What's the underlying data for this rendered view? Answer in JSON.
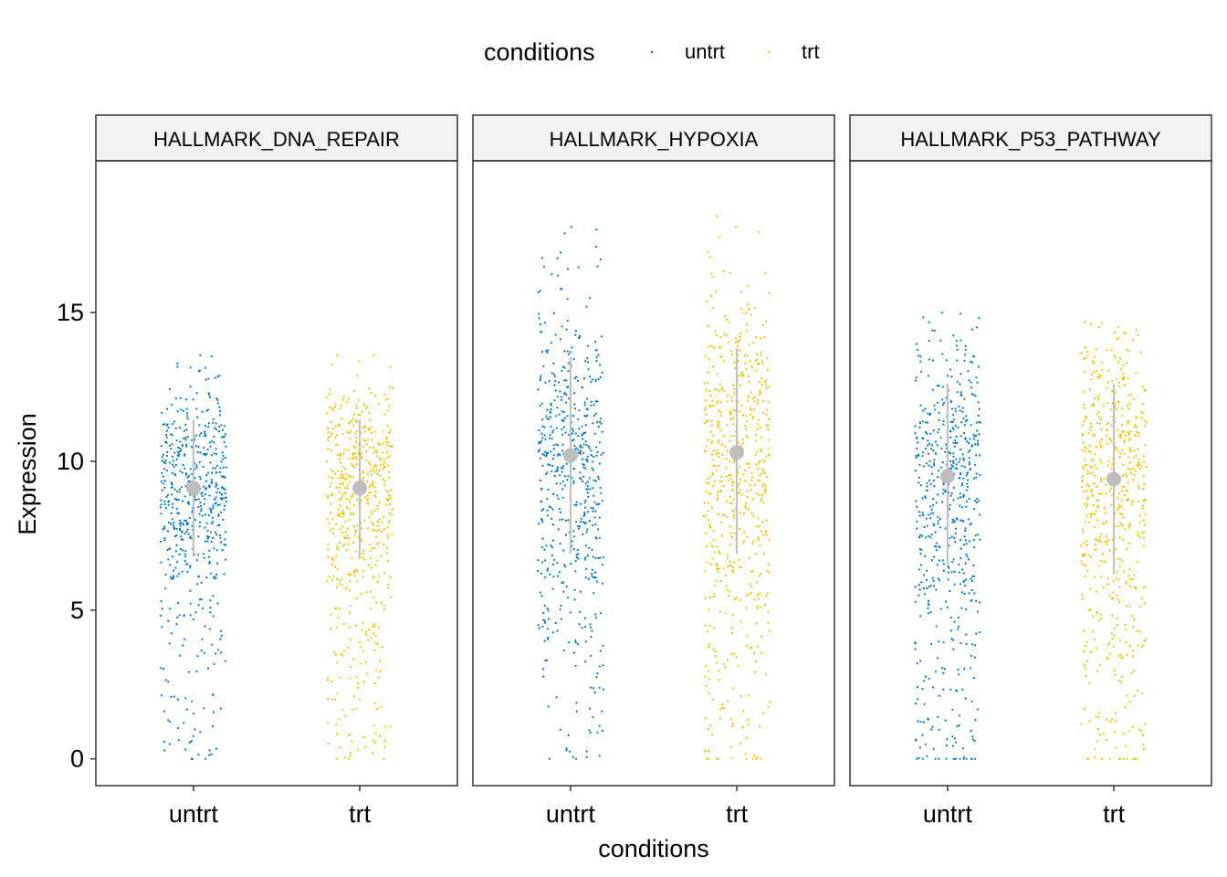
{
  "chart_data": {
    "type": "scatter",
    "subtype": "faceted jitter strip plot with mean ± sd pointrange",
    "xlabel": "conditions",
    "ylabel": "Expression",
    "ylim": [
      -0.9,
      20.1
    ],
    "yticks": [
      0,
      5,
      10,
      15
    ],
    "grid": false,
    "legend": {
      "position": "top",
      "title": "conditions",
      "entries": [
        {
          "label": "untrt",
          "color": "#0073C2"
        },
        {
          "label": "trt",
          "color": "#EFC000"
        }
      ]
    },
    "categories": [
      "untrt",
      "trt"
    ],
    "summary_color": "#BEBEBE",
    "facets": [
      {
        "title": "HALLMARK_DNA_REPAIR",
        "series": [
          {
            "name": "untrt",
            "mean": 9.1,
            "ymin": 6.8,
            "ymax": 11.4,
            "max": 13.6,
            "zeros": 3
          },
          {
            "name": "trt",
            "mean": 9.1,
            "ymin": 6.8,
            "ymax": 11.4,
            "max": 13.6,
            "zeros": 2
          }
        ]
      },
      {
        "title": "HALLMARK_HYPOXIA",
        "series": [
          {
            "name": "untrt",
            "mean": 10.2,
            "ymin": 6.9,
            "ymax": 13.5,
            "max": 18.7,
            "zeros": 2
          },
          {
            "name": "trt",
            "mean": 10.3,
            "ymin": 6.9,
            "ymax": 13.8,
            "max": 18.6,
            "zeros": 8
          }
        ]
      },
      {
        "title": "HALLMARK_P53_PATHWAY",
        "series": [
          {
            "name": "untrt",
            "mean": 9.5,
            "ymin": 6.5,
            "ymax": 12.6,
            "max": 15.0,
            "zeros": 14
          },
          {
            "name": "trt",
            "mean": 9.4,
            "ymin": 6.2,
            "ymax": 12.6,
            "max": 14.7,
            "zeros": 12
          }
        ]
      }
    ]
  }
}
